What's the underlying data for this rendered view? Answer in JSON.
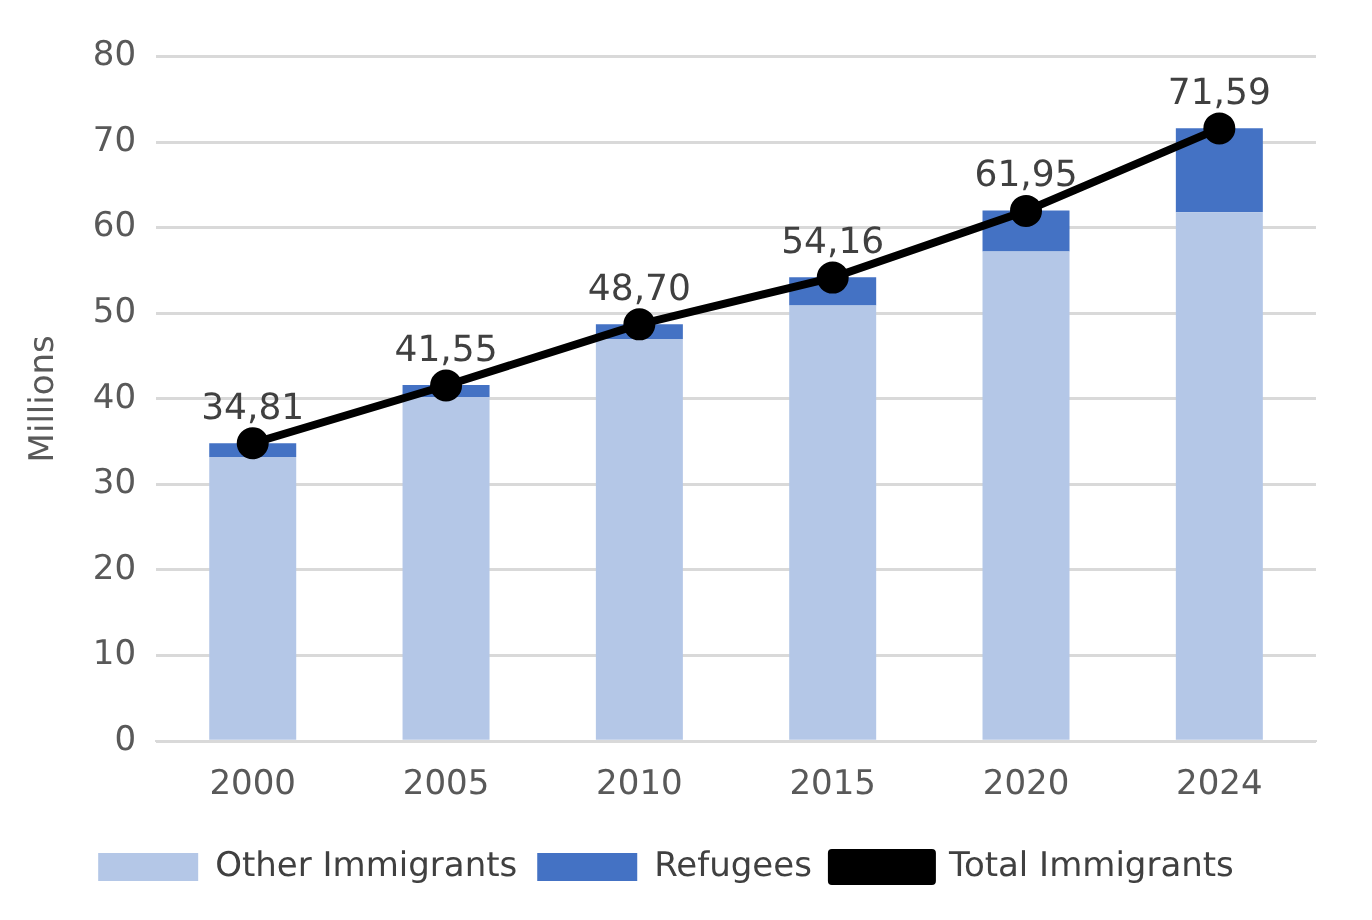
{
  "chart_data": {
    "type": "bar",
    "stacked": true,
    "ylabel": "Millions",
    "categories": [
      "2000",
      "2005",
      "2010",
      "2015",
      "2020",
      "2024"
    ],
    "ylim": [
      0,
      80
    ],
    "yticks": [
      0,
      10,
      20,
      30,
      40,
      50,
      60,
      70,
      80
    ],
    "grid": "y",
    "legend": "bottom",
    "series": [
      {
        "name": "Other Immigrants",
        "color": "#b4c7e7",
        "values": [
          33.2,
          40.2,
          47.0,
          50.9,
          57.2,
          61.8
        ]
      },
      {
        "name": "Refugees",
        "color": "#4472c4",
        "values": [
          1.6,
          1.4,
          1.7,
          3.3,
          4.8,
          9.8
        ]
      },
      {
        "name": "Total Immigrants",
        "type": "line",
        "color": "#000000",
        "marker": "circle",
        "values": [
          34.81,
          41.55,
          48.7,
          54.16,
          61.95,
          71.59
        ],
        "value_labels": [
          "34,81",
          "41,55",
          "48,70",
          "54,16",
          "61,95",
          "71,59"
        ]
      }
    ]
  }
}
